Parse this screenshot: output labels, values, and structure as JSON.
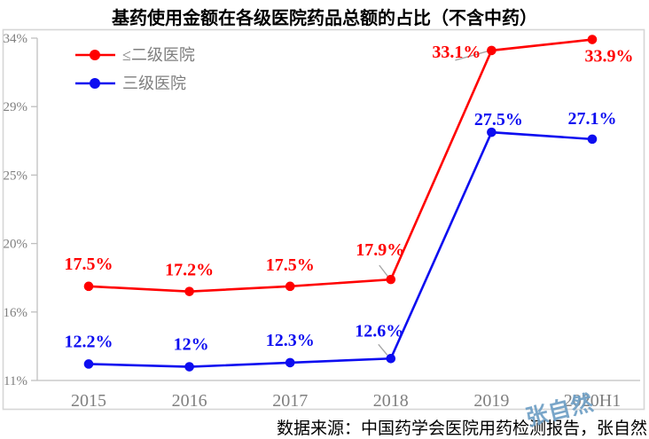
{
  "title": "基药使用金额在各级医院药品总额的占比（不含中药）",
  "source_note": "数据来源：中国药学会医院用药检测报告，张自然",
  "watermark": "张自然",
  "colors": {
    "series_red": "#ff0000",
    "series_blue": "#0d0df0",
    "axis": "#bfbfbf",
    "tick_text": "#7f7f7f",
    "legend_text": "#7f7f7f",
    "frame": "#d6d6d6",
    "leader": "#a6a6a6",
    "title_text": "#000000",
    "watermark_color": "#6e9fc5"
  },
  "chart_data": {
    "type": "line",
    "title": "基药使用金额在各级医院药品总额的占比（不含中药）",
    "categories": [
      "2015",
      "2016",
      "2017",
      "2018",
      "2019",
      "2020H1"
    ],
    "series": [
      {
        "name": "≤二级医院",
        "color": "#ff0000",
        "values": [
          17.5,
          17.2,
          17.5,
          17.9,
          33.1,
          33.9
        ],
        "point_labels": [
          "17.5%",
          "17.2%",
          "17.5%",
          "17.9%",
          "33.1%",
          "33.9%"
        ]
      },
      {
        "name": "三级医院",
        "color": "#0d0df0",
        "values": [
          12.2,
          12,
          12.3,
          12.6,
          27.5,
          27.1
        ],
        "point_labels": [
          "12.2%",
          "12%",
          "12.3%",
          "12.6%",
          "27.5%",
          "27.1%"
        ]
      }
    ],
    "y_axis": {
      "tick_labels": [
        "34%",
        "29%",
        "25%",
        "20%",
        "16%",
        "11%"
      ],
      "tick_values": [
        34,
        29,
        25,
        20,
        16,
        11
      ]
    },
    "grid": false,
    "legend_position": "top-left",
    "marker": "circle"
  }
}
